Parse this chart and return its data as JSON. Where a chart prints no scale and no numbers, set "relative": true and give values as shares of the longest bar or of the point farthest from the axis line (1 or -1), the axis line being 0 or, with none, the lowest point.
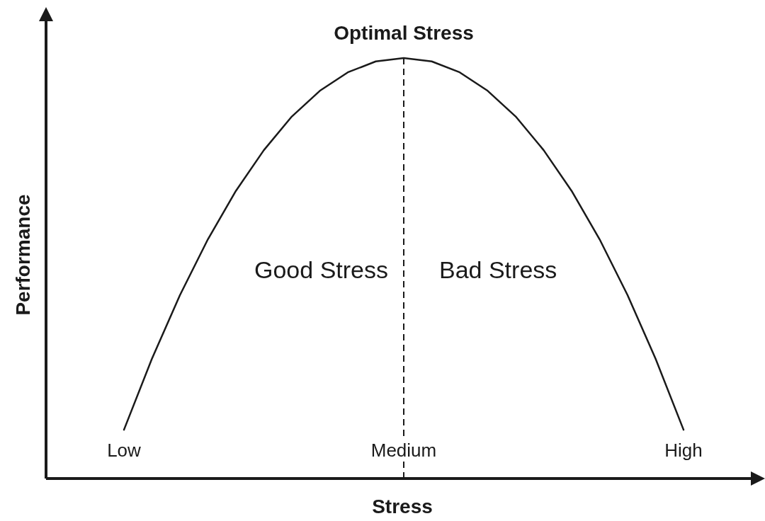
{
  "chart_data": {
    "type": "line",
    "relative": true,
    "xlabel": "Stress",
    "ylabel": "Performance",
    "categories": [
      "Low",
      null,
      null,
      null,
      null,
      null,
      null,
      null,
      null,
      null,
      "Medium",
      null,
      null,
      null,
      null,
      null,
      null,
      null,
      null,
      null,
      "High"
    ],
    "series": [
      {
        "color": "#1a1a1a",
        "values": [
          0.116,
          0.285,
          0.436,
          0.569,
          0.684,
          0.781,
          0.861,
          0.922,
          0.966,
          0.992,
          1,
          0.992,
          0.966,
          0.922,
          0.861,
          0.781,
          0.684,
          0.569,
          0.436,
          0.285,
          0.116
        ]
      }
    ],
    "ref_lines": [
      {
        "axis": "x",
        "value": "Medium",
        "line_style": "dashed",
        "color": "#1a1a1a"
      }
    ],
    "annotations": [
      "Optimal Stress",
      "Good Stress",
      "Bad Stress"
    ],
    "line_style": "solid",
    "grid": false
  }
}
